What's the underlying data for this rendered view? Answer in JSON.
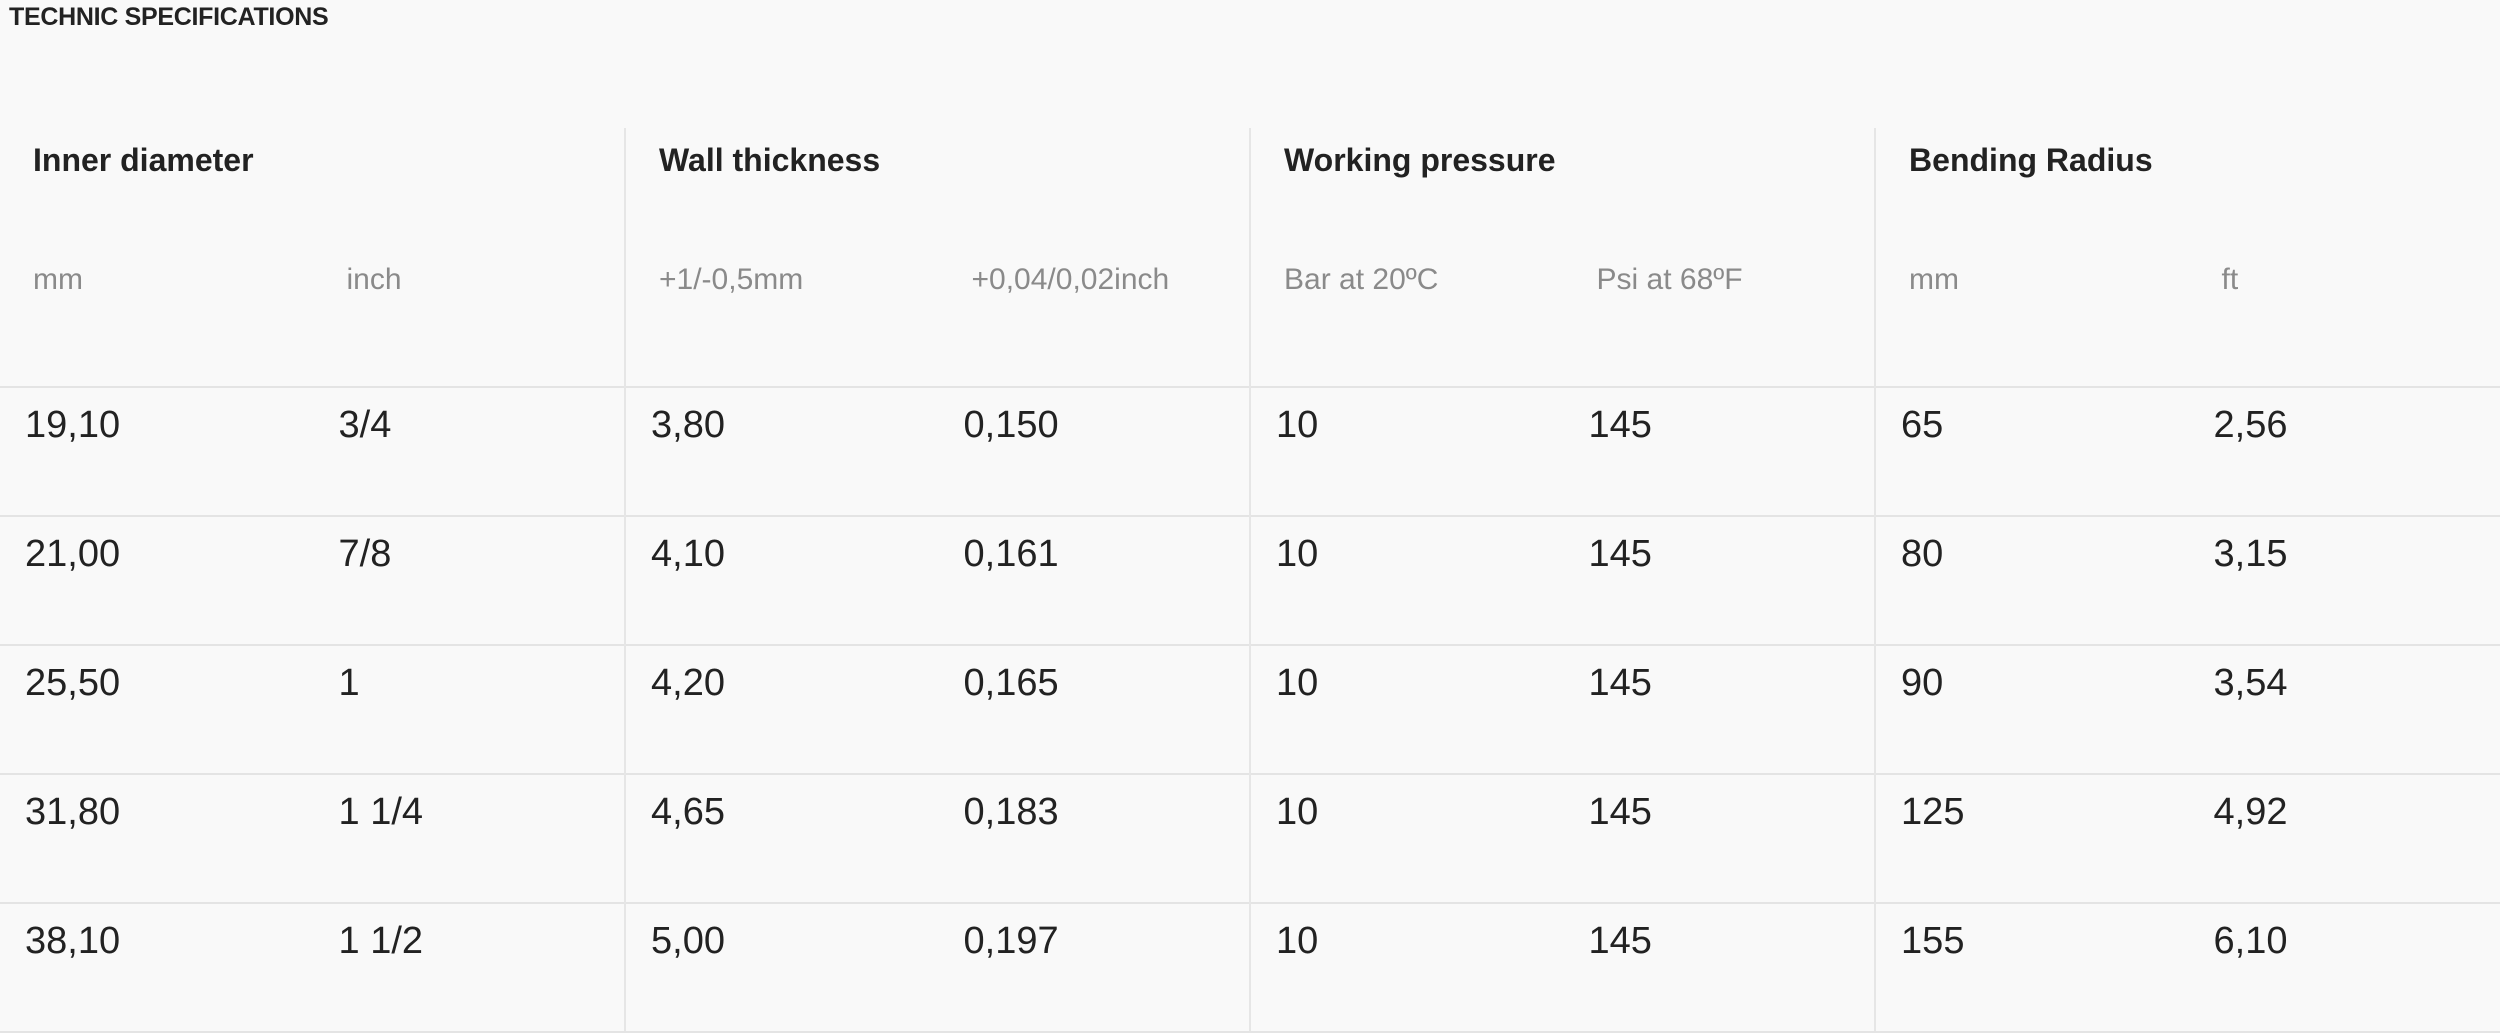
{
  "section_title": "TECHNIC SPECIFICATIONS",
  "groups": [
    "Inner diameter",
    "Wall thickness",
    "Working pressure",
    "Bending Radius"
  ],
  "units": [
    "mm",
    "inch",
    "+1/-0,5mm",
    "+0,04/0,02inch",
    "Bar at 20ºC",
    "Psi at 68ºF",
    "mm",
    "ft"
  ],
  "rows": [
    [
      "19,10",
      "3/4",
      "3,80",
      "0,150",
      "10",
      "145",
      "65",
      "2,56"
    ],
    [
      "21,00",
      "7/8",
      "4,10",
      "0,161",
      "10",
      "145",
      "80",
      "3,15"
    ],
    [
      "25,50",
      "1",
      "4,20",
      "0,165",
      "10",
      "145",
      "90",
      "3,54"
    ],
    [
      "31,80",
      "1 1/4",
      "4,65",
      "0,183",
      "10",
      "145",
      "125",
      "4,92"
    ],
    [
      "38,10",
      "1 1/2",
      "5,00",
      "0,197",
      "10",
      "145",
      "155",
      "6,10"
    ]
  ]
}
